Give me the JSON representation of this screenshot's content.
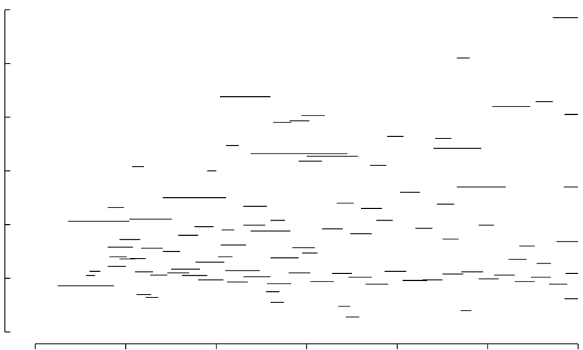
{
  "chart_data": {
    "type": "scatter",
    "mark": "horizontal-segment",
    "title": "",
    "xlabel": "",
    "ylabel": "",
    "x_ticks": [
      0,
      1,
      2,
      3,
      4,
      5,
      6
    ],
    "y_ticks": [
      0,
      1,
      2,
      3,
      4,
      5,
      6
    ],
    "xlim": [
      0,
      6
    ],
    "ylim": [
      0,
      6
    ],
    "grid": false,
    "legend": "none",
    "color": "#000000",
    "segments": [
      {
        "x0": 0.25,
        "x1": 0.87,
        "y": 0.86
      },
      {
        "x0": 0.36,
        "x1": 1.04,
        "y": 2.06
      },
      {
        "x0": 1.04,
        "x1": 1.51,
        "y": 2.1
      },
      {
        "x0": 1.41,
        "x1": 2.11,
        "y": 2.5
      },
      {
        "x0": 2.04,
        "x1": 2.6,
        "y": 4.38
      },
      {
        "x0": 2.3,
        "x1": 2.56,
        "y": 2.34
      },
      {
        "x0": 2.38,
        "x1": 2.82,
        "y": 1.88
      },
      {
        "x0": 2.38,
        "x1": 3.45,
        "y": 3.32
      },
      {
        "x0": 2.91,
        "x1": 3.17,
        "y": 3.18
      },
      {
        "x0": 2.63,
        "x1": 2.83,
        "y": 3.9
      },
      {
        "x0": 3.0,
        "x1": 3.57,
        "y": 3.27
      },
      {
        "x0": 4.4,
        "x1": 4.93,
        "y": 3.42
      },
      {
        "x0": 4.66,
        "x1": 5.2,
        "y": 2.7
      },
      {
        "x0": 5.05,
        "x1": 5.47,
        "y": 4.2
      },
      {
        "x0": 5.72,
        "x1": 6.0,
        "y": 5.85
      },
      {
        "x0": 5.84,
        "x1": 6.0,
        "y": 2.7
      },
      {
        "x0": 5.76,
        "x1": 6.0,
        "y": 1.68
      },
      {
        "x0": 4.66,
        "x1": 4.8,
        "y": 5.1
      },
      {
        "x0": 5.53,
        "x1": 5.72,
        "y": 4.29
      },
      {
        "x0": 5.85,
        "x1": 6.0,
        "y": 4.05
      },
      {
        "x0": 4.42,
        "x1": 4.6,
        "y": 3.6
      },
      {
        "x0": 2.94,
        "x1": 3.2,
        "y": 4.03
      },
      {
        "x0": 2.81,
        "x1": 3.03,
        "y": 3.93
      },
      {
        "x0": 2.11,
        "x1": 2.25,
        "y": 3.47
      },
      {
        "x0": 1.07,
        "x1": 1.2,
        "y": 3.08
      },
      {
        "x0": 0.8,
        "x1": 0.98,
        "y": 2.32
      },
      {
        "x0": 1.9,
        "x1": 2.0,
        "y": 3.0
      },
      {
        "x0": 3.89,
        "x1": 4.07,
        "y": 3.64
      },
      {
        "x0": 3.7,
        "x1": 3.88,
        "y": 3.1
      },
      {
        "x0": 3.33,
        "x1": 3.52,
        "y": 2.4
      },
      {
        "x0": 4.03,
        "x1": 4.25,
        "y": 2.6
      },
      {
        "x0": 4.44,
        "x1": 4.63,
        "y": 2.38
      },
      {
        "x0": 0.93,
        "x1": 1.16,
        "y": 1.72
      },
      {
        "x0": 0.8,
        "x1": 1.08,
        "y": 1.58
      },
      {
        "x0": 0.82,
        "x1": 1.01,
        "y": 1.4
      },
      {
        "x0": 1.05,
        "x1": 1.22,
        "y": 1.37
      },
      {
        "x0": 1.17,
        "x1": 1.41,
        "y": 1.56
      },
      {
        "x0": 1.41,
        "x1": 1.6,
        "y": 1.5
      },
      {
        "x0": 1.77,
        "x1": 2.09,
        "y": 1.3
      },
      {
        "x0": 2.1,
        "x1": 2.48,
        "y": 1.14
      },
      {
        "x0": 2.6,
        "x1": 2.91,
        "y": 1.38
      },
      {
        "x0": 2.84,
        "x1": 3.09,
        "y": 1.57
      },
      {
        "x0": 2.05,
        "x1": 2.33,
        "y": 1.62
      },
      {
        "x0": 1.58,
        "x1": 1.8,
        "y": 1.8
      },
      {
        "x0": 1.76,
        "x1": 1.97,
        "y": 1.96
      },
      {
        "x0": 2.3,
        "x1": 2.54,
        "y": 1.99
      },
      {
        "x0": 2.6,
        "x1": 2.76,
        "y": 2.08
      },
      {
        "x0": 3.17,
        "x1": 3.4,
        "y": 1.92
      },
      {
        "x0": 3.48,
        "x1": 3.72,
        "y": 1.83
      },
      {
        "x0": 3.6,
        "x1": 3.83,
        "y": 2.3
      },
      {
        "x0": 3.77,
        "x1": 3.95,
        "y": 2.08
      },
      {
        "x0": 4.2,
        "x1": 4.39,
        "y": 1.93
      },
      {
        "x0": 4.5,
        "x1": 4.68,
        "y": 1.73
      },
      {
        "x0": 4.9,
        "x1": 5.07,
        "y": 1.99
      },
      {
        "x0": 5.23,
        "x1": 5.43,
        "y": 1.35
      },
      {
        "x0": 5.35,
        "x1": 5.52,
        "y": 1.6
      },
      {
        "x0": 5.54,
        "x1": 5.7,
        "y": 1.28
      },
      {
        "x0": 1.5,
        "x1": 1.82,
        "y": 1.17
      },
      {
        "x0": 1.62,
        "x1": 1.9,
        "y": 1.05
      },
      {
        "x0": 0.8,
        "x1": 1.0,
        "y": 1.22
      },
      {
        "x0": 0.93,
        "x1": 1.1,
        "y": 1.36
      },
      {
        "x0": 1.1,
        "x1": 1.3,
        "y": 1.12
      },
      {
        "x0": 1.27,
        "x1": 1.46,
        "y": 1.06
      },
      {
        "x0": 1.46,
        "x1": 1.7,
        "y": 1.1
      },
      {
        "x0": 1.8,
        "x1": 2.08,
        "y": 0.97
      },
      {
        "x0": 2.12,
        "x1": 2.35,
        "y": 0.93
      },
      {
        "x0": 2.3,
        "x1": 2.6,
        "y": 1.03
      },
      {
        "x0": 2.56,
        "x1": 2.83,
        "y": 0.9
      },
      {
        "x0": 2.8,
        "x1": 3.04,
        "y": 1.1
      },
      {
        "x0": 3.04,
        "x1": 3.3,
        "y": 0.94
      },
      {
        "x0": 3.28,
        "x1": 3.5,
        "y": 1.09
      },
      {
        "x0": 3.46,
        "x1": 3.72,
        "y": 1.02
      },
      {
        "x0": 3.65,
        "x1": 3.9,
        "y": 0.89
      },
      {
        "x0": 3.86,
        "x1": 4.1,
        "y": 1.13
      },
      {
        "x0": 4.06,
        "x1": 4.33,
        "y": 0.96
      },
      {
        "x0": 4.28,
        "x1": 4.5,
        "y": 0.97
      },
      {
        "x0": 4.5,
        "x1": 4.73,
        "y": 1.08
      },
      {
        "x0": 4.71,
        "x1": 4.95,
        "y": 1.12
      },
      {
        "x0": 4.9,
        "x1": 5.12,
        "y": 0.99
      },
      {
        "x0": 5.07,
        "x1": 5.3,
        "y": 1.06
      },
      {
        "x0": 5.3,
        "x1": 5.52,
        "y": 0.94
      },
      {
        "x0": 5.48,
        "x1": 5.7,
        "y": 1.02
      },
      {
        "x0": 5.68,
        "x1": 5.88,
        "y": 0.89
      },
      {
        "x0": 5.86,
        "x1": 6.0,
        "y": 1.09
      },
      {
        "x0": 2.55,
        "x1": 2.7,
        "y": 0.75
      },
      {
        "x0": 2.6,
        "x1": 2.75,
        "y": 0.55
      },
      {
        "x0": 3.35,
        "x1": 3.48,
        "y": 0.48
      },
      {
        "x0": 3.43,
        "x1": 3.58,
        "y": 0.28
      },
      {
        "x0": 4.7,
        "x1": 4.82,
        "y": 0.4
      },
      {
        "x0": 5.85,
        "x1": 6.0,
        "y": 0.62
      },
      {
        "x0": 1.12,
        "x1": 1.28,
        "y": 0.7
      },
      {
        "x0": 1.22,
        "x1": 1.36,
        "y": 0.64
      },
      {
        "x0": 2.95,
        "x1": 3.12,
        "y": 1.47
      },
      {
        "x0": 2.02,
        "x1": 2.18,
        "y": 1.4
      },
      {
        "x0": 2.06,
        "x1": 2.2,
        "y": 1.9
      },
      {
        "x0": 0.56,
        "x1": 0.66,
        "y": 1.05
      },
      {
        "x0": 0.6,
        "x1": 0.72,
        "y": 1.13
      }
    ]
  }
}
